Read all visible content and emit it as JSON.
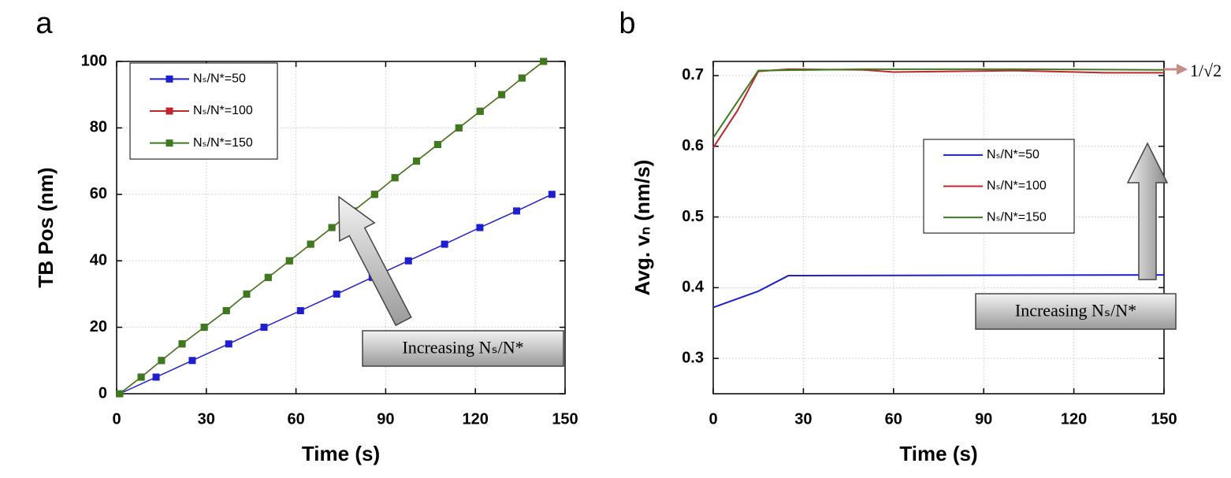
{
  "chart_data": [
    {
      "type": "line",
      "panel_label": "a",
      "xlabel": "Time (s)",
      "ylabel": "TB Pos (nm)",
      "xlim": [
        0,
        150
      ],
      "xticks": [
        0,
        30,
        60,
        90,
        120,
        150
      ],
      "ylim": [
        0,
        100
      ],
      "yticks": [
        0,
        20,
        40,
        60,
        80,
        100
      ],
      "grid": true,
      "markers": true,
      "legend": "upper left",
      "annotation": "Increasing Nₛ/N*",
      "series": [
        {
          "name": "Nₛ/N*=50",
          "color": "#1f1fd0",
          "x": [
            1,
            13.2,
            25.3,
            37.5,
            49.3,
            61.5,
            73.6,
            85.5,
            97.6,
            109.7,
            121.5,
            133.8,
            145.6
          ],
          "values": [
            0,
            5,
            10,
            15,
            20,
            25,
            30,
            35,
            40,
            45,
            50,
            55,
            60
          ]
        },
        {
          "name": "Nₛ/N*=100",
          "color": "#c0262c",
          "x": [
            1,
            8.2,
            15,
            21.9,
            29.3,
            36.7,
            43.5,
            50.7,
            57.8,
            64.9,
            72,
            79.2,
            86.3,
            93.1,
            100.3,
            107.4,
            114.5,
            121.6,
            128.8,
            135.6,
            142.8
          ],
          "values": [
            0,
            5,
            10,
            15,
            20,
            25,
            30,
            35,
            40,
            45,
            50,
            55,
            60,
            65,
            70,
            75,
            80,
            85,
            90,
            95,
            100
          ]
        },
        {
          "name": "Nₛ/N*=150",
          "color": "#3d7a1e",
          "x": [
            1,
            8.2,
            15,
            21.9,
            29.3,
            36.7,
            43.5,
            50.7,
            57.8,
            64.9,
            72,
            79.2,
            86.3,
            93.1,
            100.3,
            107.4,
            114.5,
            121.6,
            128.8,
            135.6,
            142.8
          ],
          "values": [
            0,
            5,
            10,
            15,
            20,
            25,
            30,
            35,
            40,
            45,
            50,
            55,
            60,
            65,
            70,
            75,
            80,
            85,
            90,
            95,
            100
          ]
        }
      ]
    },
    {
      "type": "line",
      "panel_label": "b",
      "xlabel": "Time (s)",
      "ylabel": "Avg. vₙ (nm/s)",
      "xlim": [
        0,
        150
      ],
      "xticks": [
        0,
        30,
        60,
        90,
        120,
        150
      ],
      "ylim": [
        0.25,
        0.72
      ],
      "yticks": [
        0.3,
        0.4,
        0.5,
        0.6,
        0.7
      ],
      "grid": true,
      "markers": false,
      "legend": "center right",
      "annotation": "Increasing Nₛ/N*",
      "reference_label": "1/√2",
      "series": [
        {
          "name": "Nₛ/N*=50",
          "color": "#1f1fd0",
          "x": [
            0,
            15,
            25,
            150
          ],
          "values": [
            0.372,
            0.395,
            0.417,
            0.418
          ]
        },
        {
          "name": "Nₛ/N*=100",
          "color": "#c0262c",
          "x": [
            0,
            8,
            15,
            25,
            50,
            60,
            100,
            130,
            150
          ],
          "values": [
            0.598,
            0.65,
            0.706,
            0.709,
            0.708,
            0.705,
            0.707,
            0.704,
            0.704
          ]
        },
        {
          "name": "Nₛ/N*=150",
          "color": "#3d7a1e",
          "x": [
            0,
            15,
            50,
            100,
            150
          ],
          "values": [
            0.612,
            0.707,
            0.709,
            0.709,
            0.708
          ]
        }
      ]
    }
  ]
}
